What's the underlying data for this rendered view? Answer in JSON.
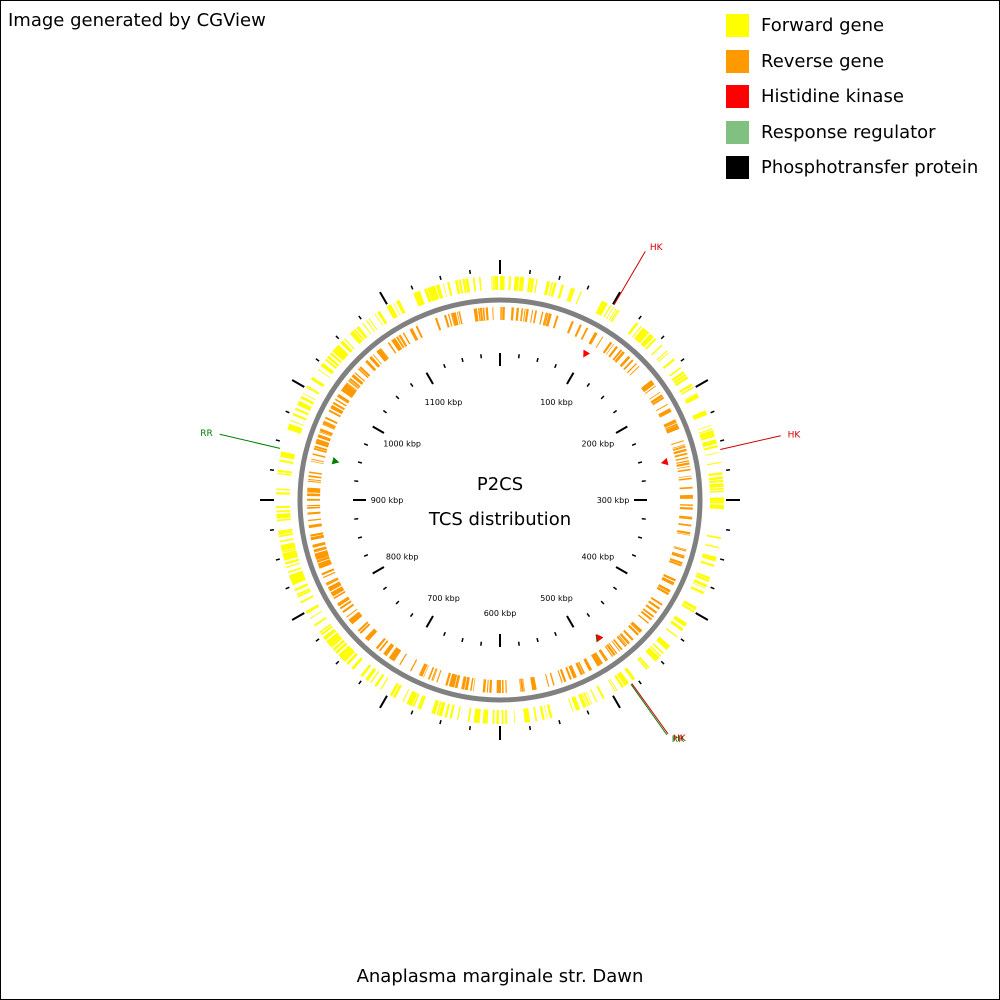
{
  "credit": "Image generated by CGView",
  "legend": [
    {
      "label": "Forward gene",
      "color": "#ffff00"
    },
    {
      "label": "Reverse gene",
      "color": "#ff9900"
    },
    {
      "label": "Histidine kinase",
      "color": "#ff0000"
    },
    {
      "label": "Response regulator",
      "color": "#80c080"
    },
    {
      "label": "Phosphotransfer protein",
      "color": "#000000"
    }
  ],
  "map": {
    "title": "P2CS",
    "subtitle": "TCS distribution",
    "organism": "Anaplasma marginale str. Dawn",
    "genome_kbp": 1200,
    "tick_labels": [
      "100 kbp",
      "200 kbp",
      "300 kbp",
      "400 kbp",
      "500 kbp",
      "600 kbp",
      "700 kbp",
      "800 kbp",
      "900 kbp",
      "1000 kbp",
      "1100 kbp"
    ],
    "tick_label_kbp": [
      100,
      200,
      300,
      400,
      500,
      600,
      700,
      800,
      900,
      1000,
      1100
    ],
    "backbone_color": "#808080",
    "features": [
      {
        "label": "HK",
        "position_kbp": 101,
        "color": "#ff0000",
        "callout_color": "#d00000"
      },
      {
        "label": "HK",
        "position_kbp": 257,
        "color": "#ff0000",
        "callout_color": "#d00000"
      },
      {
        "label": "RR",
        "position_kbp": 482,
        "color": "#008000",
        "callout_color": "#008000"
      },
      {
        "label": "HK",
        "position_kbp": 481,
        "color": "#ff0000",
        "callout_color": "#d00000"
      },
      {
        "label": "RR",
        "position_kbp": 944,
        "color": "#008000",
        "callout_color": "#008000"
      }
    ]
  }
}
